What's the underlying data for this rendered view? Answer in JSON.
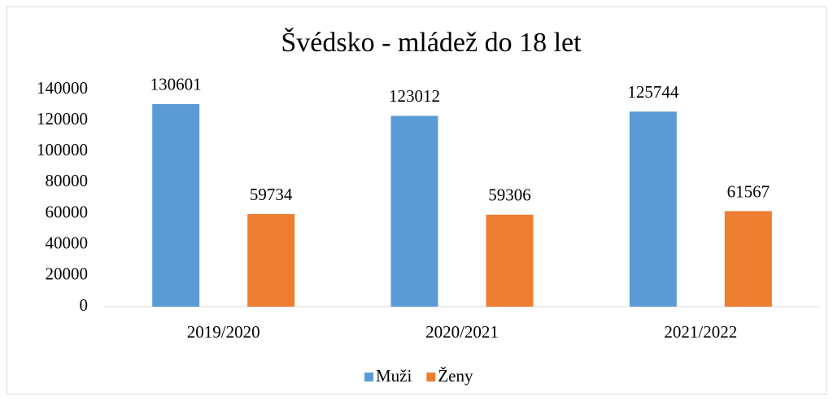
{
  "chart_data": {
    "type": "bar",
    "title": "Švédsko - mládež do 18 let",
    "categories": [
      "2019/2020",
      "2020/2021",
      "2021/2022"
    ],
    "series": [
      {
        "name": "Muži",
        "color": "#5b9bd5",
        "values": [
          130601,
          123012,
          125744
        ]
      },
      {
        "name": "Ženy",
        "color": "#ed7d31",
        "values": [
          59734,
          59306,
          61567
        ]
      }
    ],
    "ylim": [
      0,
      140000
    ],
    "yticks": [
      0,
      20000,
      40000,
      60000,
      80000,
      100000,
      120000,
      140000
    ],
    "grid": false,
    "legend": "bottom"
  }
}
